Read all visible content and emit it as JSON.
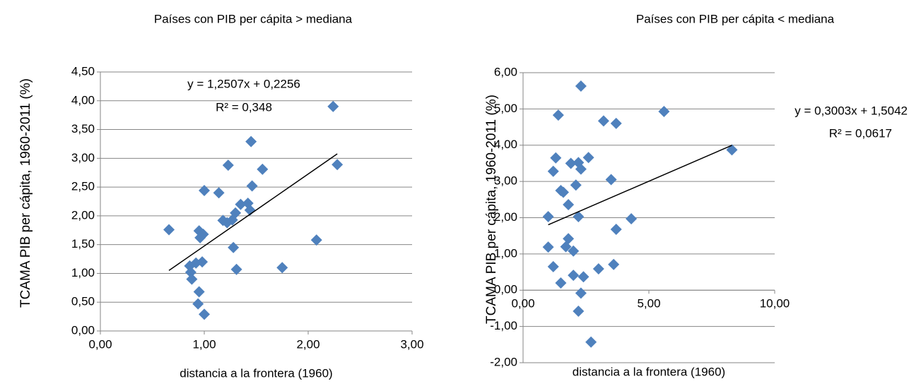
{
  "chart_data": [
    {
      "type": "scatter",
      "title": "Países con PIB per cápita > mediana",
      "xlabel": "distancia a la frontera (1960)",
      "ylabel": "TCAMA PIB per cápita, 1960-2011 (%)",
      "color": "#4f81bd",
      "marker": "diamond",
      "grid": true,
      "xlim": [
        0,
        3
      ],
      "xticks": [
        {
          "value": 0,
          "label": "0,00"
        },
        {
          "value": 1,
          "label": "1,00"
        },
        {
          "value": 2,
          "label": "2,00"
        },
        {
          "value": 3,
          "label": "3,00"
        }
      ],
      "ylim": [
        0,
        4.5
      ],
      "yticks": [
        {
          "value": 0,
          "label": "0,00"
        },
        {
          "value": 0.5,
          "label": "0,50"
        },
        {
          "value": 1,
          "label": "1,00"
        },
        {
          "value": 1.5,
          "label": "1,50"
        },
        {
          "value": 2,
          "label": "2,00"
        },
        {
          "value": 2.5,
          "label": "2,50"
        },
        {
          "value": 3,
          "label": "3,00"
        },
        {
          "value": 3.5,
          "label": "3,50"
        },
        {
          "value": 4,
          "label": "4,00"
        },
        {
          "value": 4.5,
          "label": "4,50"
        }
      ],
      "x": [
        0.66,
        0.86,
        0.87,
        0.88,
        0.92,
        0.95,
        0.96,
        0.99,
        0.94,
        0.95,
        1.0,
        0.98,
        1.0,
        1.14,
        1.18,
        1.22,
        1.23,
        1.27,
        1.28,
        1.3,
        1.31,
        1.35,
        1.42,
        1.44,
        1.45,
        1.46,
        1.56,
        1.75,
        2.08,
        2.24,
        2.28
      ],
      "values": [
        1.76,
        1.13,
        1.02,
        0.9,
        1.18,
        1.74,
        1.62,
        1.68,
        0.47,
        0.68,
        0.29,
        1.2,
        2.44,
        2.4,
        1.92,
        1.88,
        2.88,
        1.93,
        1.45,
        2.05,
        1.07,
        2.2,
        2.22,
        2.1,
        3.29,
        2.52,
        2.81,
        1.1,
        1.58,
        3.9,
        2.89
      ],
      "trendline": {
        "slope": {
          "value": 1.2507,
          "label": "y = 1,2507x + 0,2256"
        },
        "intercept": 0.2256,
        "r2": {
          "value": 0.348,
          "label": "R² = 0,348"
        }
      }
    },
    {
      "type": "scatter",
      "title": "Países con PIB per cápita < mediana",
      "xlabel": "distancia a la frontera (1960)",
      "ylabel": "TCAMA PIB per cápita, 1960-2011 (%)",
      "color": "#4f81bd",
      "marker": "diamond",
      "grid": true,
      "xlim": [
        0,
        10
      ],
      "xticks": [
        {
          "value": 0,
          "label": "0,00"
        },
        {
          "value": 5,
          "label": "5,00"
        },
        {
          "value": 10,
          "label": "10,00"
        }
      ],
      "ylim": [
        -2,
        6
      ],
      "yticks": [
        {
          "value": -2,
          "label": "-2,00"
        },
        {
          "value": -1,
          "label": "-1,00"
        },
        {
          "value": 0,
          "label": "0,00"
        },
        {
          "value": 1,
          "label": "1,00"
        },
        {
          "value": 2,
          "label": "2,00"
        },
        {
          "value": 3,
          "label": "3,00"
        },
        {
          "value": 4,
          "label": "4,00"
        },
        {
          "value": 5,
          "label": "5,00"
        },
        {
          "value": 6,
          "label": "6,00"
        }
      ],
      "x": [
        1.0,
        1.0,
        1.2,
        1.2,
        1.3,
        1.4,
        1.5,
        1.5,
        1.6,
        1.7,
        1.8,
        1.8,
        1.9,
        2.0,
        2.0,
        2.1,
        2.2,
        2.2,
        2.2,
        2.3,
        2.3,
        2.3,
        2.4,
        2.6,
        2.7,
        3.0,
        3.2,
        3.5,
        3.6,
        3.7,
        3.7,
        4.3,
        5.6,
        8.3
      ],
      "values": [
        2.03,
        1.19,
        0.65,
        3.28,
        3.65,
        4.83,
        0.2,
        2.75,
        2.7,
        1.2,
        1.42,
        2.36,
        3.5,
        1.08,
        0.41,
        2.9,
        3.52,
        2.03,
        -0.58,
        -0.08,
        3.34,
        5.63,
        0.37,
        3.66,
        -1.43,
        0.59,
        4.67,
        3.05,
        0.71,
        1.68,
        4.6,
        1.97,
        4.93,
        3.87
      ],
      "trendline": {
        "slope": {
          "value": 0.3003,
          "label": "y = 0,3003x + 1,5042"
        },
        "intercept": 1.5042,
        "r2": {
          "value": 0.0617,
          "label": "R² = 0,0617"
        }
      }
    }
  ]
}
